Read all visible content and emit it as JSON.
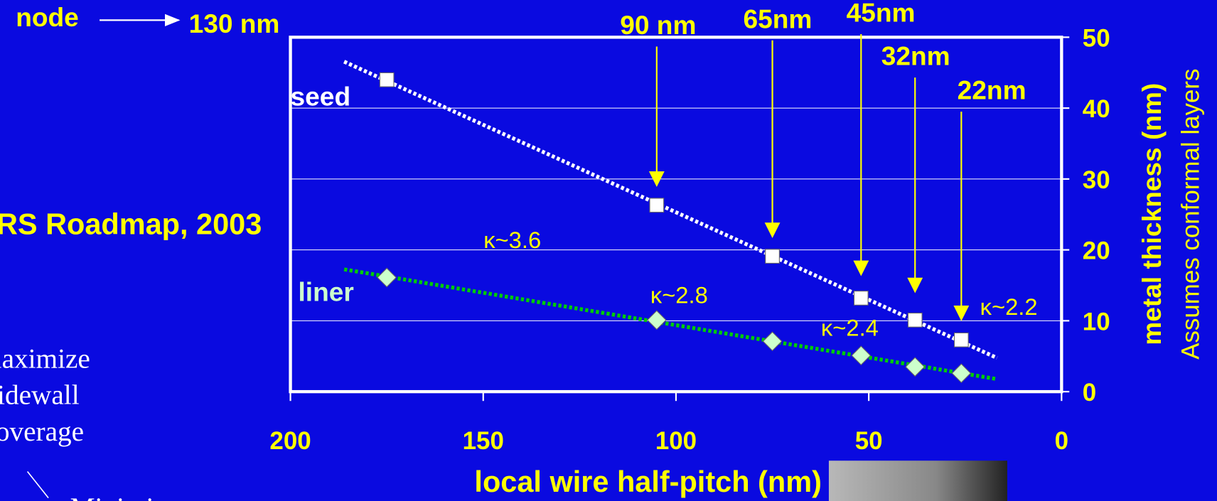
{
  "chart_data": {
    "type": "scatter",
    "xlabel": "local wire half-pitch (nm)",
    "ylabel": "metal thickness (nm)",
    "ylabel2": "Assumes conformal layers",
    "xlim": [
      200,
      0
    ],
    "xticks": [
      200,
      150,
      100,
      50,
      0
    ],
    "ylim": [
      0,
      50
    ],
    "yticks": [
      0,
      10,
      20,
      30,
      40,
      50
    ],
    "grid": true,
    "series": [
      {
        "name": "seed",
        "color": "#ffffff",
        "marker": "square",
        "trendline": true,
        "x": [
          175,
          105,
          75,
          52,
          38,
          26
        ],
        "values": [
          44,
          26.3,
          19.1,
          13.2,
          10.1,
          7.3
        ]
      },
      {
        "name": "liner",
        "color": "#ccffcc",
        "line_color": "#00cc00",
        "marker": "diamond",
        "trendline": true,
        "x": [
          175,
          105,
          75,
          52,
          38,
          26
        ],
        "values": [
          16.1,
          10.1,
          7.1,
          5.1,
          3.5,
          2.6
        ]
      }
    ],
    "nodes": [
      {
        "label": "90 nm",
        "x": 105
      },
      {
        "label": "65nm",
        "x": 75
      },
      {
        "label": "45nm",
        "x": 52
      },
      {
        "label": "32nm",
        "x": 38
      },
      {
        "label": "22nm",
        "x": 26
      }
    ],
    "kappa_labels": [
      "κ~3.6",
      "κ~2.8",
      "κ~2.4",
      "κ~2.2"
    ]
  },
  "slide": {
    "node_label": "node",
    "node_value": "130 nm",
    "roadmap": "RS Roadmap,  2003",
    "notes": [
      "laximize",
      "idewall",
      "overage"
    ],
    "bottom_note": "Minimize"
  }
}
